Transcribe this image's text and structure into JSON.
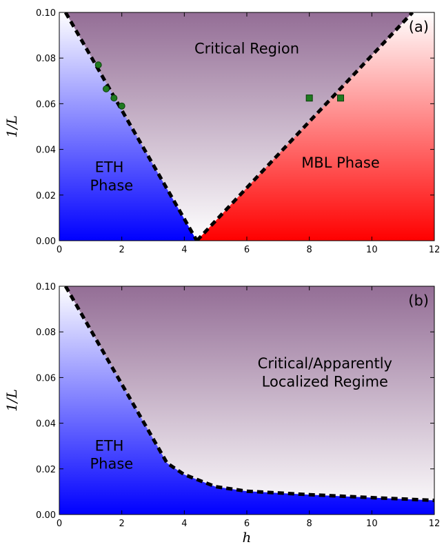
{
  "colors": {
    "eth": "#0000ff",
    "mbl": "#ff0000",
    "critical_top": "#946e96",
    "critical_bottom": "#ffffff",
    "marker": "#1f7a1f",
    "boundary": "#000000"
  },
  "chart_data": [
    {
      "type": "phase-diagram",
      "panel_tag": "(a)",
      "xlabel": "",
      "ylabel": "1/L",
      "xlim": [
        0,
        12
      ],
      "ylim": [
        0,
        0.1
      ],
      "xticks": [
        0,
        2,
        4,
        6,
        8,
        10,
        12
      ],
      "xtick_labels": [
        "0",
        "2",
        "4",
        "6",
        "8",
        "10",
        "12"
      ],
      "yticks": [
        0,
        0.02,
        0.04,
        0.06,
        0.08,
        0.1
      ],
      "ytick_labels": [
        "0.00",
        "0.02",
        "0.04",
        "0.06",
        "0.08",
        "0.10"
      ],
      "grid": false,
      "boundaries": [
        {
          "x": [
            0.2,
            4.4
          ],
          "y": [
            0.1,
            0.0
          ]
        },
        {
          "x": [
            4.4,
            11.3
          ],
          "y": [
            0.0,
            0.1
          ]
        }
      ],
      "markers": [
        {
          "shape": "circle",
          "points": [
            [
              1.25,
              0.077
            ],
            [
              1.5,
              0.0665
            ],
            [
              1.75,
              0.0625
            ],
            [
              2.0,
              0.059
            ]
          ]
        },
        {
          "shape": "square",
          "points": [
            [
              8.0,
              0.0625
            ],
            [
              9.0,
              0.0625
            ]
          ]
        }
      ],
      "region_labels": [
        {
          "lines": [
            "Critical Region"
          ],
          "x": 6.0,
          "y": 0.082
        },
        {
          "lines": [
            "ETH",
            " Phase"
          ],
          "x": 1.6,
          "y": 0.03
        },
        {
          "lines": [
            "MBL Phase"
          ],
          "x": 9.0,
          "y": 0.032
        }
      ]
    },
    {
      "type": "phase-diagram",
      "panel_tag": "(b)",
      "xlabel": "h",
      "ylabel": "1/L",
      "xlim": [
        0,
        12
      ],
      "ylim": [
        0,
        0.1
      ],
      "xticks": [
        0,
        2,
        4,
        6,
        8,
        10,
        12
      ],
      "xtick_labels": [
        "0",
        "2",
        "4",
        "6",
        "8",
        "10",
        "12"
      ],
      "yticks": [
        0,
        0.02,
        0.04,
        0.06,
        0.08,
        0.1
      ],
      "ytick_labels": [
        "0.00",
        "0.02",
        "0.04",
        "0.06",
        "0.08",
        "0.10"
      ],
      "grid": false,
      "boundaries": [
        {
          "x": [
            0.2,
            3.45,
            4.0,
            5.0,
            6.0,
            8.0,
            10.0,
            12.0
          ],
          "y": [
            0.1,
            0.0225,
            0.0175,
            0.0122,
            0.0102,
            0.0087,
            0.0074,
            0.0062
          ]
        }
      ],
      "markers": [],
      "region_labels": [
        {
          "lines": [
            "Critical/Apparently",
            "Localized Regime"
          ],
          "x": 8.5,
          "y": 0.064
        },
        {
          "lines": [
            "ETH",
            " Phase"
          ],
          "x": 1.6,
          "y": 0.028
        }
      ]
    }
  ]
}
